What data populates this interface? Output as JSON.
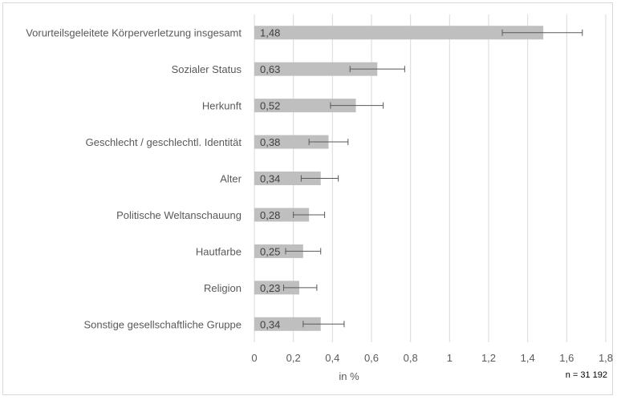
{
  "chart_data": {
    "type": "bar",
    "orientation": "horizontal",
    "categories": [
      "Vorurteilsgeleitete Körperverletzung insgesamt",
      "Sozialer Status",
      "Herkunft",
      "Geschlecht / geschlechtl. Identität",
      "Alter",
      "Politische Weltanschauung",
      "Hautfarbe",
      "Religion",
      "Sonstige gesellschaftliche Gruppe"
    ],
    "values": [
      1.48,
      0.63,
      0.52,
      0.38,
      0.34,
      0.28,
      0.25,
      0.23,
      0.34
    ],
    "value_labels": [
      "1,48",
      "0,63",
      "0,52",
      "0,38",
      "0,34",
      "0,28",
      "0,25",
      "0,23",
      "0,34"
    ],
    "error_low": [
      1.27,
      0.49,
      0.39,
      0.28,
      0.24,
      0.2,
      0.16,
      0.15,
      0.25
    ],
    "error_high": [
      1.68,
      0.77,
      0.66,
      0.48,
      0.43,
      0.36,
      0.34,
      0.32,
      0.46
    ],
    "xlim": [
      0,
      1.8
    ],
    "x_ticks": [
      0,
      0.2,
      0.4,
      0.6,
      0.8,
      1,
      1.2,
      1.4,
      1.6,
      1.8
    ],
    "x_tick_labels": [
      "0",
      "0,2",
      "0,4",
      "0,6",
      "0,8",
      "1",
      "1,2",
      "1,4",
      "1,6",
      "1,8"
    ],
    "xlabel": "in %",
    "note": "n = 31 192",
    "grid": "vertical",
    "colors": {
      "bar": "#bfbfbf",
      "grid": "#d9d9d9",
      "error": "#595959"
    }
  }
}
